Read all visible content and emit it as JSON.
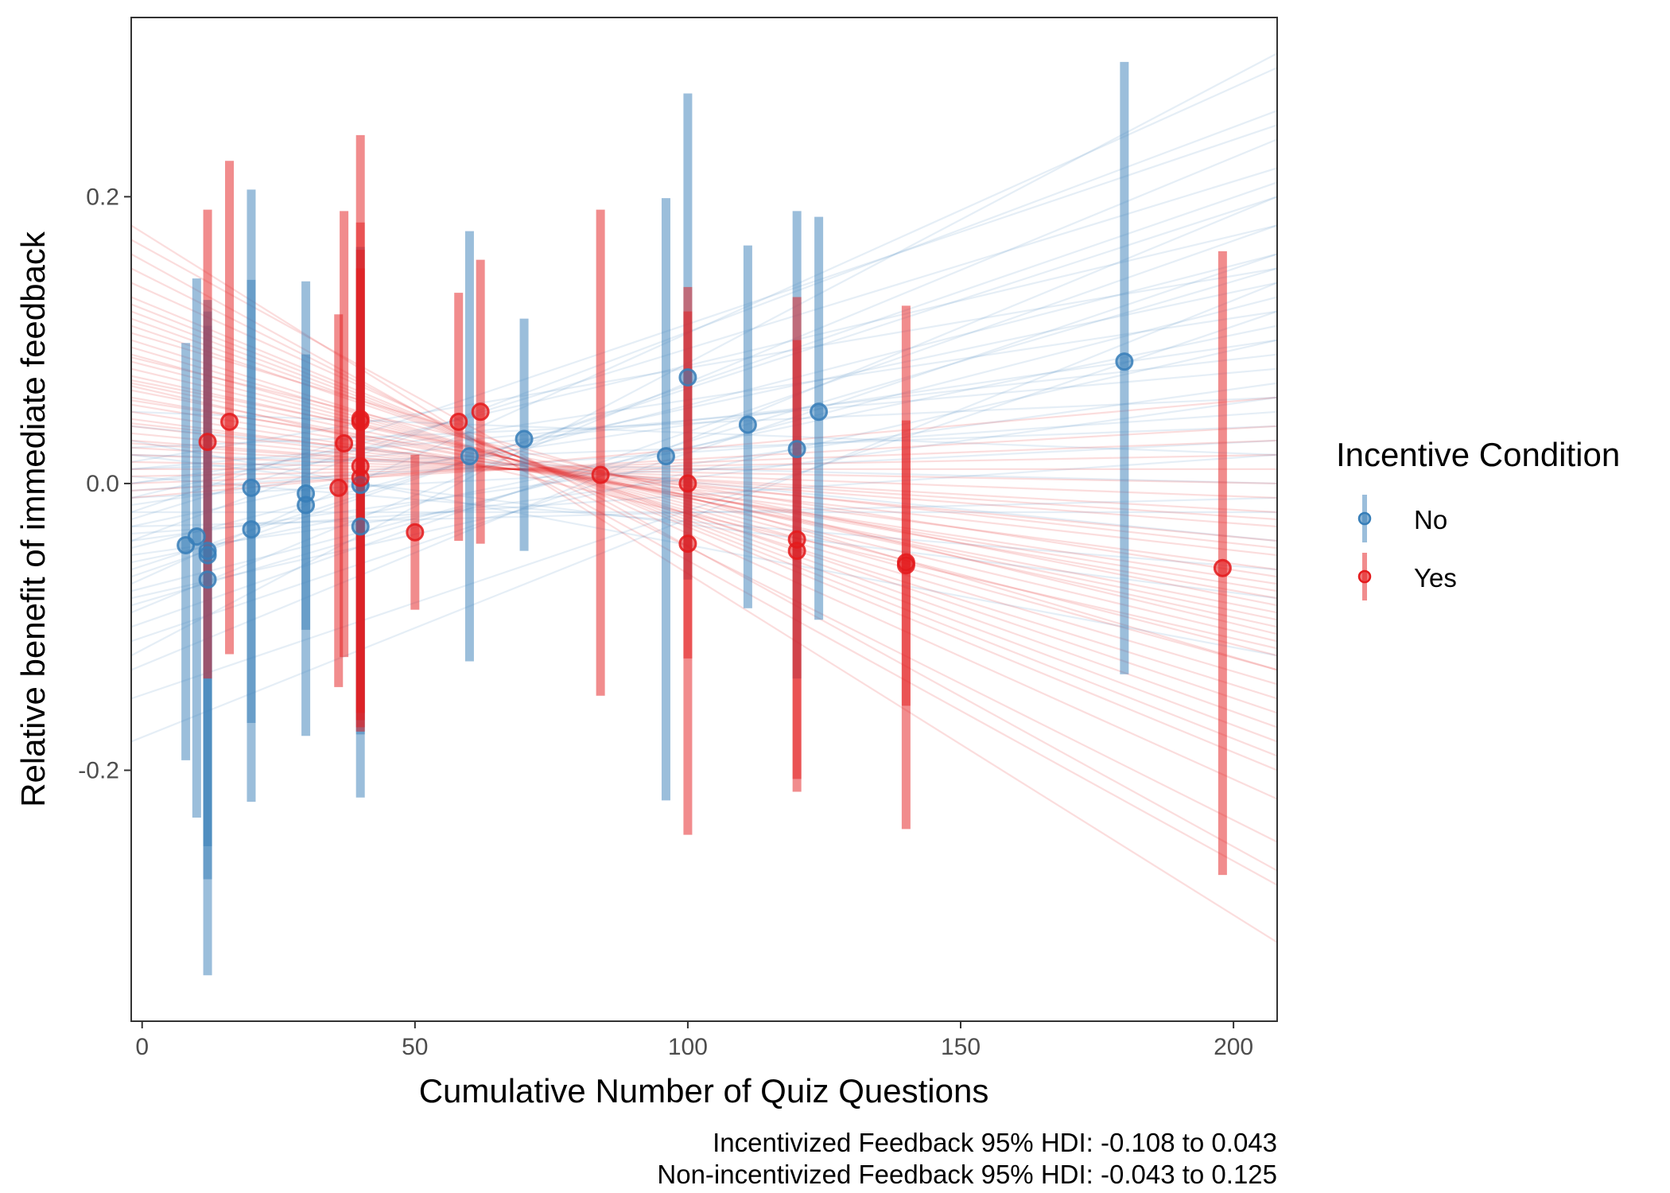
{
  "chart_data": {
    "type": "scatter",
    "xlabel": "Cumulative Number of Quiz Questions",
    "ylabel": "Relative benefit of immediate feedback",
    "xlim": [
      -2,
      208
    ],
    "ylim": [
      -0.375,
      0.325
    ],
    "x_ticks": [
      0,
      50,
      100,
      150,
      200
    ],
    "x_tick_labels": [
      "0",
      "50",
      "100",
      "150",
      "200"
    ],
    "y_ticks": [
      -0.2,
      0.0,
      0.2
    ],
    "y_tick_labels": [
      "-0.2",
      "0.0",
      "0.2"
    ],
    "grid": false,
    "legend": {
      "title": "Incentive Condition",
      "placement": "right",
      "entries": [
        {
          "label": "No",
          "color": "#377eb8"
        },
        {
          "label": "Yes",
          "color": "#e41a1c"
        }
      ]
    },
    "caption_lines": [
      "Incentivized Feedback 95% HDI: -0.108 to 0.043",
      "Non-incentivized Feedback 95% HDI: -0.043 to 0.125"
    ],
    "series": [
      {
        "name": "No",
        "color": "#377eb8",
        "points": [
          {
            "x": 8,
            "y": -0.043,
            "lo": -0.193,
            "hi": 0.098
          },
          {
            "x": 10,
            "y": -0.037,
            "lo": -0.233,
            "hi": 0.143
          },
          {
            "x": 12,
            "y": -0.047,
            "lo": -0.276,
            "hi": 0.128
          },
          {
            "x": 12,
            "y": -0.05,
            "lo": -0.343,
            "hi": 0.12
          },
          {
            "x": 12,
            "y": -0.067,
            "lo": -0.253,
            "hi": 0.11
          },
          {
            "x": 20,
            "y": -0.003,
            "lo": -0.222,
            "hi": 0.205
          },
          {
            "x": 20,
            "y": -0.032,
            "lo": -0.167,
            "hi": 0.142
          },
          {
            "x": 30,
            "y": -0.007,
            "lo": -0.176,
            "hi": 0.141
          },
          {
            "x": 30,
            "y": -0.015,
            "lo": -0.102,
            "hi": 0.09
          },
          {
            "x": 40,
            "y": -0.03,
            "lo": -0.219,
            "hi": 0.165
          },
          {
            "x": 40,
            "y": -0.001,
            "lo": -0.175,
            "hi": 0.128
          },
          {
            "x": 60,
            "y": 0.019,
            "lo": -0.124,
            "hi": 0.176
          },
          {
            "x": 70,
            "y": 0.031,
            "lo": -0.047,
            "hi": 0.115
          },
          {
            "x": 96,
            "y": 0.019,
            "lo": -0.221,
            "hi": 0.199
          },
          {
            "x": 100,
            "y": 0.074,
            "lo": -0.067,
            "hi": 0.272
          },
          {
            "x": 111,
            "y": 0.041,
            "lo": -0.087,
            "hi": 0.166
          },
          {
            "x": 120,
            "y": 0.024,
            "lo": -0.136,
            "hi": 0.19
          },
          {
            "x": 124,
            "y": 0.05,
            "lo": -0.095,
            "hi": 0.186
          },
          {
            "x": 180,
            "y": 0.085,
            "lo": -0.133,
            "hi": 0.294
          }
        ]
      },
      {
        "name": "Yes",
        "color": "#e41a1c",
        "points": [
          {
            "x": 12,
            "y": 0.029,
            "lo": -0.136,
            "hi": 0.191
          },
          {
            "x": 16,
            "y": 0.043,
            "lo": -0.119,
            "hi": 0.225
          },
          {
            "x": 36,
            "y": -0.003,
            "lo": -0.142,
            "hi": 0.118
          },
          {
            "x": 37,
            "y": 0.028,
            "lo": -0.121,
            "hi": 0.19
          },
          {
            "x": 40,
            "y": 0.045,
            "lo": -0.173,
            "hi": 0.243
          },
          {
            "x": 40,
            "y": 0.043,
            "lo": -0.16,
            "hi": 0.182
          },
          {
            "x": 40,
            "y": 0.012,
            "lo": -0.17,
            "hi": 0.163
          },
          {
            "x": 40,
            "y": 0.004,
            "lo": -0.165,
            "hi": 0.15
          },
          {
            "x": 50,
            "y": -0.034,
            "lo": -0.088,
            "hi": 0.02
          },
          {
            "x": 58,
            "y": 0.043,
            "lo": -0.04,
            "hi": 0.133
          },
          {
            "x": 62,
            "y": 0.05,
            "lo": -0.042,
            "hi": 0.156
          },
          {
            "x": 84,
            "y": 0.006,
            "lo": -0.148,
            "hi": 0.191
          },
          {
            "x": 100,
            "y": 0.0,
            "lo": -0.122,
            "hi": 0.137
          },
          {
            "x": 100,
            "y": -0.042,
            "lo": -0.245,
            "hi": 0.12
          },
          {
            "x": 120,
            "y": -0.039,
            "lo": -0.215,
            "hi": 0.13
          },
          {
            "x": 120,
            "y": -0.047,
            "lo": -0.206,
            "hi": 0.1
          },
          {
            "x": 140,
            "y": -0.055,
            "lo": -0.241,
            "hi": 0.124
          },
          {
            "x": 140,
            "y": -0.057,
            "lo": -0.155,
            "hi": 0.044
          },
          {
            "x": 198,
            "y": -0.059,
            "lo": -0.273,
            "hi": 0.162
          }
        ]
      }
    ],
    "posterior_lines": [
      {
        "series": "No",
        "color": "#377eb8",
        "lines": [
          {
            "y0": -0.18,
            "y1": 0.14
          },
          {
            "y0": -0.15,
            "y1": 0.12
          },
          {
            "y0": -0.12,
            "y1": 0.3
          },
          {
            "y0": -0.1,
            "y1": 0.18
          },
          {
            "y0": -0.09,
            "y1": 0.24
          },
          {
            "y0": -0.08,
            "y1": 0.1
          },
          {
            "y0": -0.07,
            "y1": 0.29
          },
          {
            "y0": -0.06,
            "y1": 0.2
          },
          {
            "y0": -0.05,
            "y1": 0.06
          },
          {
            "y0": -0.045,
            "y1": 0.16
          },
          {
            "y0": -0.04,
            "y1": 0.26
          },
          {
            "y0": -0.035,
            "y1": 0.02
          },
          {
            "y0": -0.03,
            "y1": 0.14
          },
          {
            "y0": -0.025,
            "y1": 0.22
          },
          {
            "y0": -0.02,
            "y1": -0.02
          },
          {
            "y0": -0.015,
            "y1": 0.1
          },
          {
            "y0": -0.01,
            "y1": 0.18
          },
          {
            "y0": -0.005,
            "y1": 0.05
          },
          {
            "y0": 0.0,
            "y1": 0.12
          },
          {
            "y0": 0.005,
            "y1": -0.06
          },
          {
            "y0": 0.01,
            "y1": 0.08
          },
          {
            "y0": 0.015,
            "y1": 0.15
          },
          {
            "y0": 0.02,
            "y1": 0.0
          },
          {
            "y0": 0.025,
            "y1": 0.06
          },
          {
            "y0": 0.03,
            "y1": -0.12
          },
          {
            "y0": 0.04,
            "y1": -0.04
          },
          {
            "y0": 0.05,
            "y1": 0.02
          },
          {
            "y0": -0.055,
            "y1": 0.11
          },
          {
            "y0": -0.065,
            "y1": 0.21
          },
          {
            "y0": -0.02,
            "y1": 0.25
          },
          {
            "y0": 0.01,
            "y1": 0.04
          },
          {
            "y0": -0.11,
            "y1": 0.16
          },
          {
            "y0": -0.075,
            "y1": 0.13
          },
          {
            "y0": 0.0,
            "y1": 0.09
          },
          {
            "y0": -0.04,
            "y1": 0.07
          },
          {
            "y0": 0.02,
            "y1": -0.08
          },
          {
            "y0": -0.13,
            "y1": 0.2
          },
          {
            "y0": -0.01,
            "y1": 0.03
          },
          {
            "y0": -0.03,
            "y1": -0.01
          },
          {
            "y0": -0.085,
            "y1": 0.15
          }
        ]
      },
      {
        "series": "Yes",
        "color": "#e41a1c",
        "lines": [
          {
            "y0": 0.18,
            "y1": -0.32
          },
          {
            "y0": 0.16,
            "y1": -0.28
          },
          {
            "y0": 0.15,
            "y1": -0.25
          },
          {
            "y0": 0.14,
            "y1": -0.22
          },
          {
            "y0": 0.13,
            "y1": -0.2
          },
          {
            "y0": 0.12,
            "y1": -0.18
          },
          {
            "y0": 0.11,
            "y1": -0.16
          },
          {
            "y0": 0.1,
            "y1": -0.15
          },
          {
            "y0": 0.095,
            "y1": -0.14
          },
          {
            "y0": 0.09,
            "y1": -0.13
          },
          {
            "y0": 0.085,
            "y1": -0.12
          },
          {
            "y0": 0.08,
            "y1": -0.11
          },
          {
            "y0": 0.075,
            "y1": -0.1
          },
          {
            "y0": 0.07,
            "y1": -0.095
          },
          {
            "y0": 0.065,
            "y1": -0.09
          },
          {
            "y0": 0.06,
            "y1": -0.08
          },
          {
            "y0": 0.055,
            "y1": -0.075
          },
          {
            "y0": 0.05,
            "y1": -0.07
          },
          {
            "y0": 0.045,
            "y1": -0.06
          },
          {
            "y0": 0.04,
            "y1": -0.05
          },
          {
            "y0": 0.035,
            "y1": -0.04
          },
          {
            "y0": 0.03,
            "y1": -0.03
          },
          {
            "y0": 0.025,
            "y1": -0.02
          },
          {
            "y0": 0.02,
            "y1": -0.01
          },
          {
            "y0": 0.015,
            "y1": 0.0
          },
          {
            "y0": 0.01,
            "y1": 0.01
          },
          {
            "y0": 0.005,
            "y1": 0.02
          },
          {
            "y0": 0.0,
            "y1": 0.03
          },
          {
            "y0": -0.005,
            "y1": 0.04
          },
          {
            "y0": -0.01,
            "y1": 0.06
          },
          {
            "y0": 0.17,
            "y1": -0.27
          },
          {
            "y0": 0.125,
            "y1": -0.19
          },
          {
            "y0": 0.105,
            "y1": -0.13
          },
          {
            "y0": 0.088,
            "y1": -0.105
          },
          {
            "y0": 0.072,
            "y1": -0.085
          },
          {
            "y0": 0.058,
            "y1": -0.065
          },
          {
            "y0": 0.042,
            "y1": -0.045
          },
          {
            "y0": 0.028,
            "y1": -0.025
          },
          {
            "y0": 0.068,
            "y1": -0.115
          },
          {
            "y0": 0.115,
            "y1": -0.17
          }
        ]
      }
    ]
  }
}
